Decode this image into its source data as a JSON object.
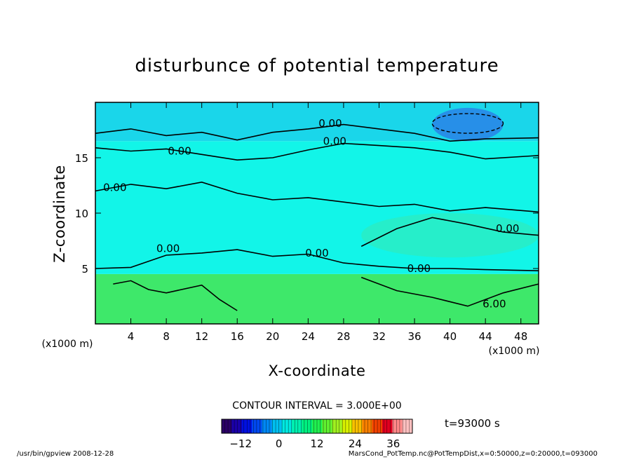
{
  "chart_data": {
    "type": "heatmap",
    "title": "disturbunce of potential temperature",
    "xlabel": "X-coordinate",
    "ylabel": "Z-coordinate",
    "x_unit": "(x1000 m)",
    "z_unit": "(x1000 m)",
    "xlim": [
      0,
      50
    ],
    "ylim": [
      0,
      20
    ],
    "x_ticks": [
      4,
      8,
      12,
      16,
      20,
      24,
      28,
      32,
      36,
      40,
      44,
      48
    ],
    "y_ticks": [
      5,
      10,
      15
    ],
    "contour_interval_text": "CONTOUR INTERVAL = 3.000E+00",
    "contour_interval": 3.0,
    "contour_labels": [
      {
        "text": "0.00",
        "x": 26.5,
        "z": 18.1
      },
      {
        "text": "0.00",
        "x": 27.0,
        "z": 16.5
      },
      {
        "text": "0.00",
        "x": 9.5,
        "z": 15.6
      },
      {
        "text": "0.00",
        "x": 2.2,
        "z": 12.3
      },
      {
        "text": "0.00",
        "x": 8.2,
        "z": 6.8
      },
      {
        "text": "0.00",
        "x": 25.0,
        "z": 6.4
      },
      {
        "text": "0.00",
        "x": 46.5,
        "z": 8.6
      },
      {
        "text": "0.00",
        "x": 36.5,
        "z": 5.0
      },
      {
        "text": "6.00",
        "x": 45.0,
        "z": 1.8
      }
    ],
    "regions": [
      {
        "name": "lower",
        "z": [
          0,
          4.5
        ],
        "value": 5,
        "color": "#3ee86a"
      },
      {
        "name": "mid",
        "z": [
          4.5,
          16.5
        ],
        "value": 1,
        "color": "#12f5e8"
      },
      {
        "name": "upper",
        "z": [
          16.5,
          20
        ],
        "value": -2,
        "color": "#1ad6ea"
      },
      {
        "name": "cold-cell",
        "x": [
          38,
          46
        ],
        "z": [
          16.5,
          19.5
        ],
        "value": -8,
        "color": "#2a82e8"
      },
      {
        "name": "warm-band",
        "x": [
          30,
          50
        ],
        "z": [
          6,
          10
        ],
        "value": 2,
        "color": "#34e9b6"
      }
    ],
    "colorbar": {
      "min": -18,
      "max": 42,
      "tick_values": [
        -12,
        0,
        12,
        24,
        36
      ],
      "tick_labels": [
        "−12",
        "0",
        "12",
        "24",
        "36"
      ],
      "colors": [
        "#2a0066",
        "#1a00a8",
        "#0010e0",
        "#0048f0",
        "#0088f5",
        "#00c0f0",
        "#00e8e0",
        "#00f0b0",
        "#00f080",
        "#20f050",
        "#60f030",
        "#a0f020",
        "#d8f000",
        "#f8c000",
        "#f88000",
        "#f04000",
        "#e00020",
        "#ff8888",
        "#ffc0c0"
      ]
    }
  },
  "time_label": "t=93000 s",
  "footer": {
    "left": "/usr/bin/gpview  2008-12-28",
    "right": "MarsCond_PotTemp.nc@PotTempDist,x=0:50000,z=0:20000,t=093000"
  },
  "colors": {
    "contour": "#000000"
  }
}
